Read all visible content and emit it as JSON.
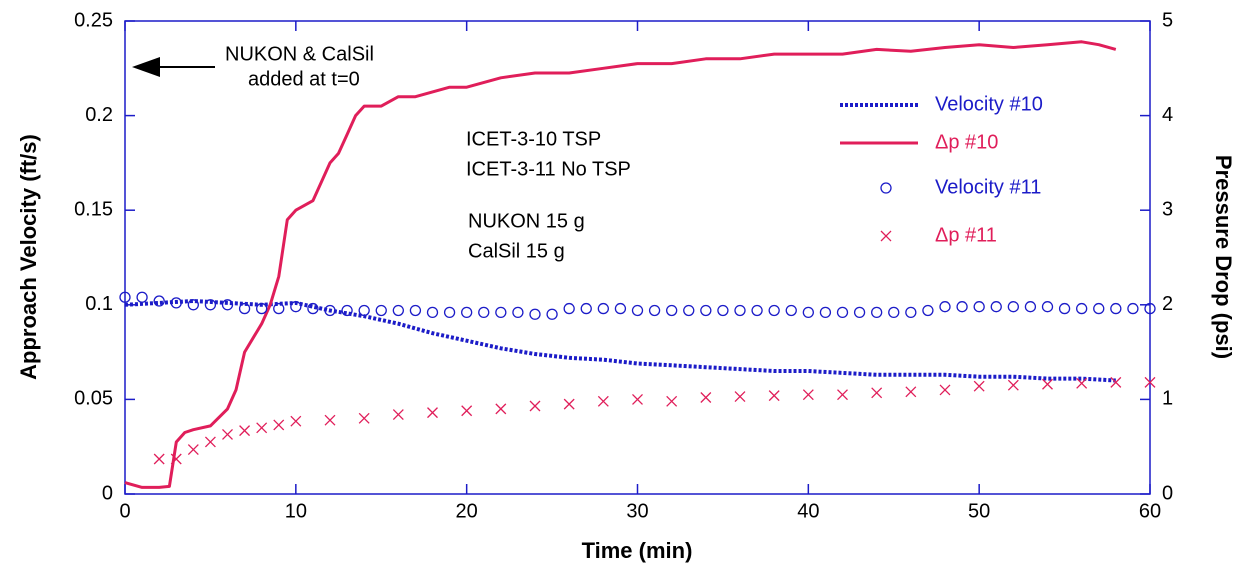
{
  "chart_data": {
    "type": "line",
    "x_label": "Time (min)",
    "y_label": "Approach Velocity (ft/s)",
    "y2_label": "Pressure Drop (psi)",
    "xlim": [
      0,
      60
    ],
    "xticks": [
      0,
      10,
      20,
      30,
      40,
      50,
      60
    ],
    "ylim": [
      0,
      0.25
    ],
    "yticks": [
      0,
      0.05,
      0.1,
      0.15,
      0.2,
      0.25
    ],
    "y2lim": [
      0,
      5
    ],
    "y2ticks": [
      0,
      1,
      2,
      3,
      4,
      5
    ],
    "grid": false,
    "legend": "upper right",
    "annotations": [
      "NUKON & CalSil",
      "added at t=0",
      "ICET-3-10 TSP",
      "ICET-3-11 No TSP",
      "NUKON 15 g",
      "CalSil 15 g"
    ],
    "series": [
      {
        "name": "Velocity #10",
        "color": "#1c1cc8",
        "line": "dotted",
        "marker": "none",
        "x": [
          0,
          2,
          4,
          6,
          8,
          10,
          12,
          14,
          16,
          18,
          20,
          22,
          24,
          26,
          28,
          30,
          32,
          34,
          36,
          38,
          40,
          42,
          44,
          46,
          48,
          50,
          52,
          54,
          56,
          58
        ],
        "values": [
          0.1,
          0.101,
          0.102,
          0.101,
          0.1,
          0.101,
          0.097,
          0.094,
          0.09,
          0.085,
          0.081,
          0.077,
          0.074,
          0.072,
          0.071,
          0.069,
          0.068,
          0.067,
          0.066,
          0.065,
          0.065,
          0.064,
          0.063,
          0.063,
          0.063,
          0.062,
          0.062,
          0.061,
          0.061,
          0.06
        ]
      },
      {
        "name": "Δp #10",
        "color": "#e01e5a",
        "line": "solid",
        "marker": "none",
        "axis": "y2",
        "x": [
          0,
          1,
          2,
          2.6,
          3,
          3.5,
          4,
          5,
          6,
          6.5,
          7,
          8,
          8.5,
          9,
          9.5,
          10,
          11,
          11.5,
          12,
          12.5,
          13,
          13.5,
          14,
          15,
          16,
          17,
          18,
          19,
          20,
          22,
          24,
          26,
          28,
          30,
          32,
          34,
          36,
          38,
          40,
          42,
          44,
          46,
          48,
          50,
          52,
          54,
          56,
          57,
          58
        ],
        "values": [
          0.12,
          0.07,
          0.07,
          0.08,
          0.55,
          0.65,
          0.68,
          0.72,
          0.9,
          1.1,
          1.5,
          1.8,
          2.0,
          2.3,
          2.9,
          3.0,
          3.1,
          3.3,
          3.5,
          3.6,
          3.8,
          4.0,
          4.1,
          4.1,
          4.2,
          4.2,
          4.25,
          4.3,
          4.3,
          4.4,
          4.45,
          4.45,
          4.5,
          4.55,
          4.55,
          4.6,
          4.6,
          4.65,
          4.65,
          4.65,
          4.7,
          4.68,
          4.72,
          4.75,
          4.72,
          4.75,
          4.78,
          4.75,
          4.7
        ]
      },
      {
        "name": "Velocity #11",
        "color": "#1c1cc8",
        "line": "none",
        "marker": "circle",
        "x": [
          0,
          1,
          2,
          3,
          4,
          5,
          6,
          7,
          8,
          9,
          10,
          11,
          12,
          13,
          14,
          15,
          16,
          17,
          18,
          19,
          20,
          21,
          22,
          23,
          24,
          25,
          26,
          27,
          28,
          29,
          30,
          31,
          32,
          33,
          34,
          35,
          36,
          37,
          38,
          39,
          40,
          41,
          42,
          43,
          44,
          45,
          46,
          47,
          48,
          49,
          50,
          51,
          52,
          53,
          54,
          55,
          56,
          57,
          58,
          59,
          60
        ],
        "values": [
          0.104,
          0.104,
          0.102,
          0.101,
          0.1,
          0.1,
          0.1,
          0.098,
          0.098,
          0.098,
          0.099,
          0.098,
          0.097,
          0.097,
          0.097,
          0.097,
          0.097,
          0.097,
          0.096,
          0.096,
          0.096,
          0.096,
          0.096,
          0.096,
          0.095,
          0.095,
          0.098,
          0.098,
          0.098,
          0.098,
          0.097,
          0.097,
          0.097,
          0.097,
          0.097,
          0.097,
          0.097,
          0.097,
          0.097,
          0.097,
          0.096,
          0.096,
          0.096,
          0.096,
          0.096,
          0.096,
          0.096,
          0.097,
          0.099,
          0.099,
          0.099,
          0.099,
          0.099,
          0.099,
          0.099,
          0.098,
          0.098,
          0.098,
          0.098,
          0.098,
          0.098
        ]
      },
      {
        "name": "Δp #11",
        "color": "#e01e5a",
        "line": "none",
        "marker": "x",
        "axis": "y2",
        "x": [
          2,
          3,
          4,
          5,
          6,
          7,
          8,
          9,
          10,
          12,
          14,
          16,
          18,
          20,
          22,
          24,
          26,
          28,
          30,
          32,
          34,
          36,
          38,
          40,
          42,
          44,
          46,
          48,
          50,
          52,
          54,
          56,
          58,
          60
        ],
        "values": [
          0.37,
          0.37,
          0.47,
          0.55,
          0.63,
          0.67,
          0.7,
          0.73,
          0.77,
          0.78,
          0.8,
          0.84,
          0.86,
          0.88,
          0.9,
          0.93,
          0.95,
          0.98,
          1.0,
          0.98,
          1.02,
          1.03,
          1.04,
          1.05,
          1.05,
          1.07,
          1.08,
          1.1,
          1.14,
          1.15,
          1.16,
          1.17,
          1.18,
          1.18
        ]
      }
    ]
  }
}
